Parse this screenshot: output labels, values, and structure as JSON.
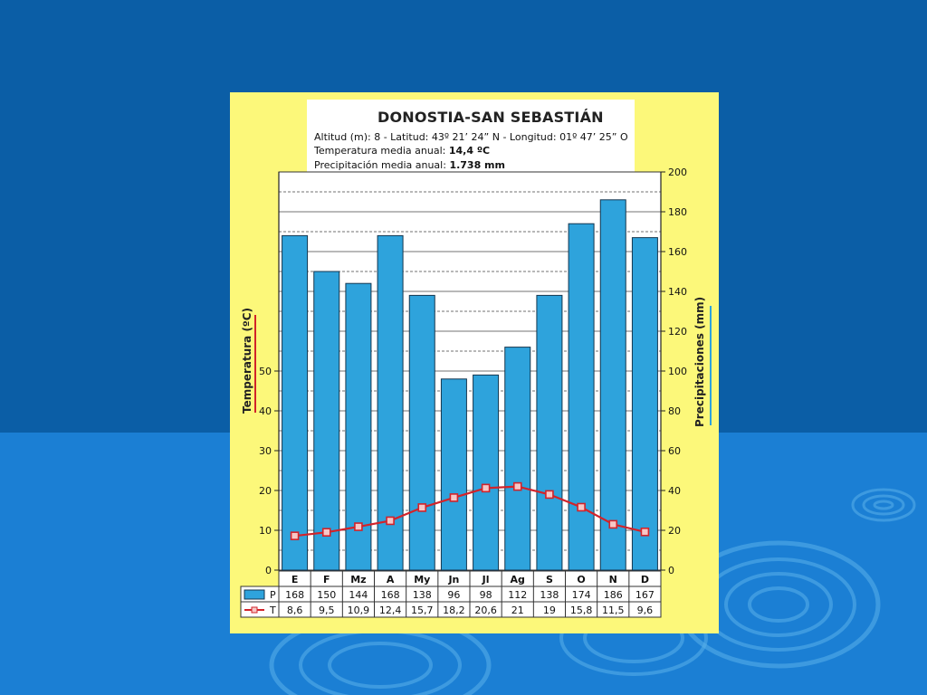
{
  "colors": {
    "slide_background": "#0b5ea6",
    "slide_lower_band": "#1b7fd4",
    "panel_background": "#fcf87a",
    "bar_fill": "#2ea3dc",
    "bar_stroke": "#14364f",
    "temperature_line": "#d2232a",
    "temperature_marker_fill": "#f7c7c7"
  },
  "info": {
    "title": "DONOSTIA-SAN SEBASTIÁN",
    "line1": "Altitud (m): 8 - Latitud: 43º 21’ 24” N - Longitud: 01º 47’ 25” O",
    "line2_label": "Temperatura media anual: ",
    "line2_value": "14,4 ºC",
    "line3_label": "Precipitación media anual: ",
    "line3_value": "1.738 mm"
  },
  "chart_data": {
    "type": "bar",
    "categories": [
      "E",
      "F",
      "Mz",
      "A",
      "My",
      "Jn",
      "Jl",
      "Ag",
      "S",
      "O",
      "N",
      "D"
    ],
    "series": [
      {
        "name": "P",
        "kind": "bar",
        "axis": "right",
        "values": [
          168,
          150,
          144,
          168,
          138,
          96,
          98,
          112,
          138,
          174,
          186,
          167
        ],
        "labels": [
          "168",
          "150",
          "144",
          "168",
          "138",
          "96",
          "98",
          "112",
          "138",
          "174",
          "186",
          "167"
        ]
      },
      {
        "name": "T",
        "kind": "line",
        "axis": "left",
        "values": [
          8.6,
          9.5,
          10.9,
          12.4,
          15.7,
          18.2,
          20.6,
          21,
          19,
          15.8,
          11.5,
          9.6
        ],
        "labels": [
          "8,6",
          "9,5",
          "10,9",
          "12,4",
          "15,7",
          "18,2",
          "20,6",
          "21",
          "19",
          "15,8",
          "11,5",
          "9,6"
        ]
      }
    ],
    "ylabel_left": "Temperatura (ºC)",
    "ylabel_right": "Precipitaciones (mm)",
    "ylim_left": [
      0,
      100
    ],
    "ylim_right": [
      0,
      200
    ],
    "yticks_left": [
      "0",
      "10",
      "20",
      "30",
      "40",
      "50"
    ],
    "yticks_right": [
      "0",
      "20",
      "40",
      "60",
      "80",
      "100",
      "120",
      "140",
      "160",
      "180",
      "200"
    ],
    "grid": true,
    "legend": "data table below the chart"
  }
}
